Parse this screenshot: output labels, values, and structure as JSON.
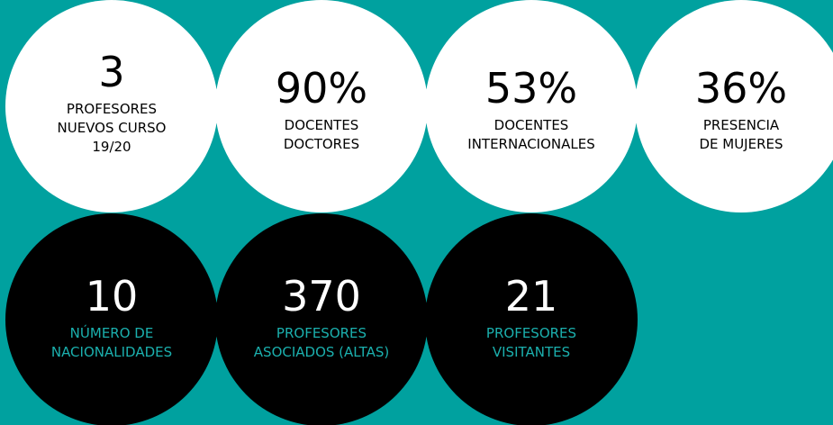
{
  "stats": [
    {
      "number": "3",
      "lines": [
        "PROFESORES",
        "NUEVOS CURSO",
        "19/20"
      ]
    },
    {
      "number": "90%",
      "lines": [
        "DOCENTES",
        "DOCTORES"
      ]
    },
    {
      "number": "53%",
      "lines": [
        "DOCENTES",
        "INTERNACIONALES"
      ]
    },
    {
      "number": "36%",
      "lines": [
        "PRESENCIA",
        "DE MUJERES"
      ]
    },
    {
      "number": "10",
      "lines": [
        "NÚMERO DE",
        "NACIONALIDADES"
      ]
    },
    {
      "number": "370",
      "lines": [
        "PROFESORES",
        "ASOCIADOS (ALTAS)"
      ]
    },
    {
      "number": "21",
      "lines": [
        "PROFESORES",
        "VISITANTES"
      ]
    }
  ]
}
